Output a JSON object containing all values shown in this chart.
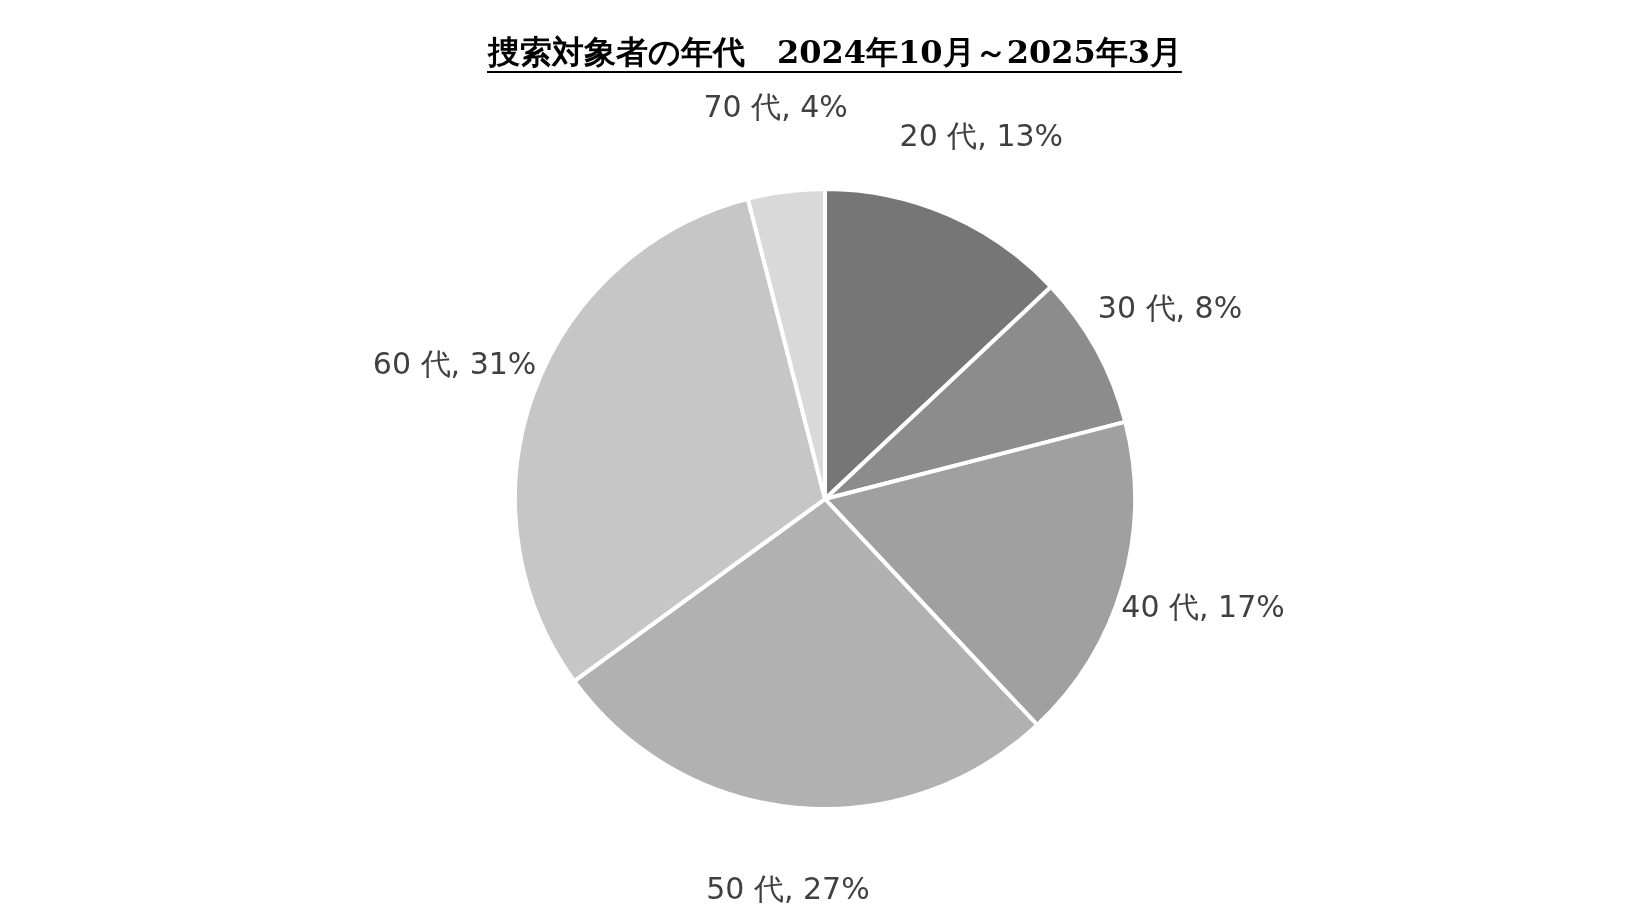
{
  "chart_data": {
    "type": "pie",
    "title": "捜索対象者の年代　2024年10月～2025年3月",
    "categories": [
      "20 代",
      "30 代",
      "40 代",
      "50 代",
      "60 代",
      "70 代"
    ],
    "values": [
      13,
      8,
      17,
      27,
      31,
      4
    ],
    "value_labels": [
      "13%",
      "8%",
      "17%",
      "27%",
      "31%",
      "4%"
    ],
    "colors": [
      "#767676",
      "#8c8c8c",
      "#a0a0a0",
      "#b1b1b1",
      "#c6c6c6",
      "#d9d9d9"
    ],
    "legend": false
  }
}
